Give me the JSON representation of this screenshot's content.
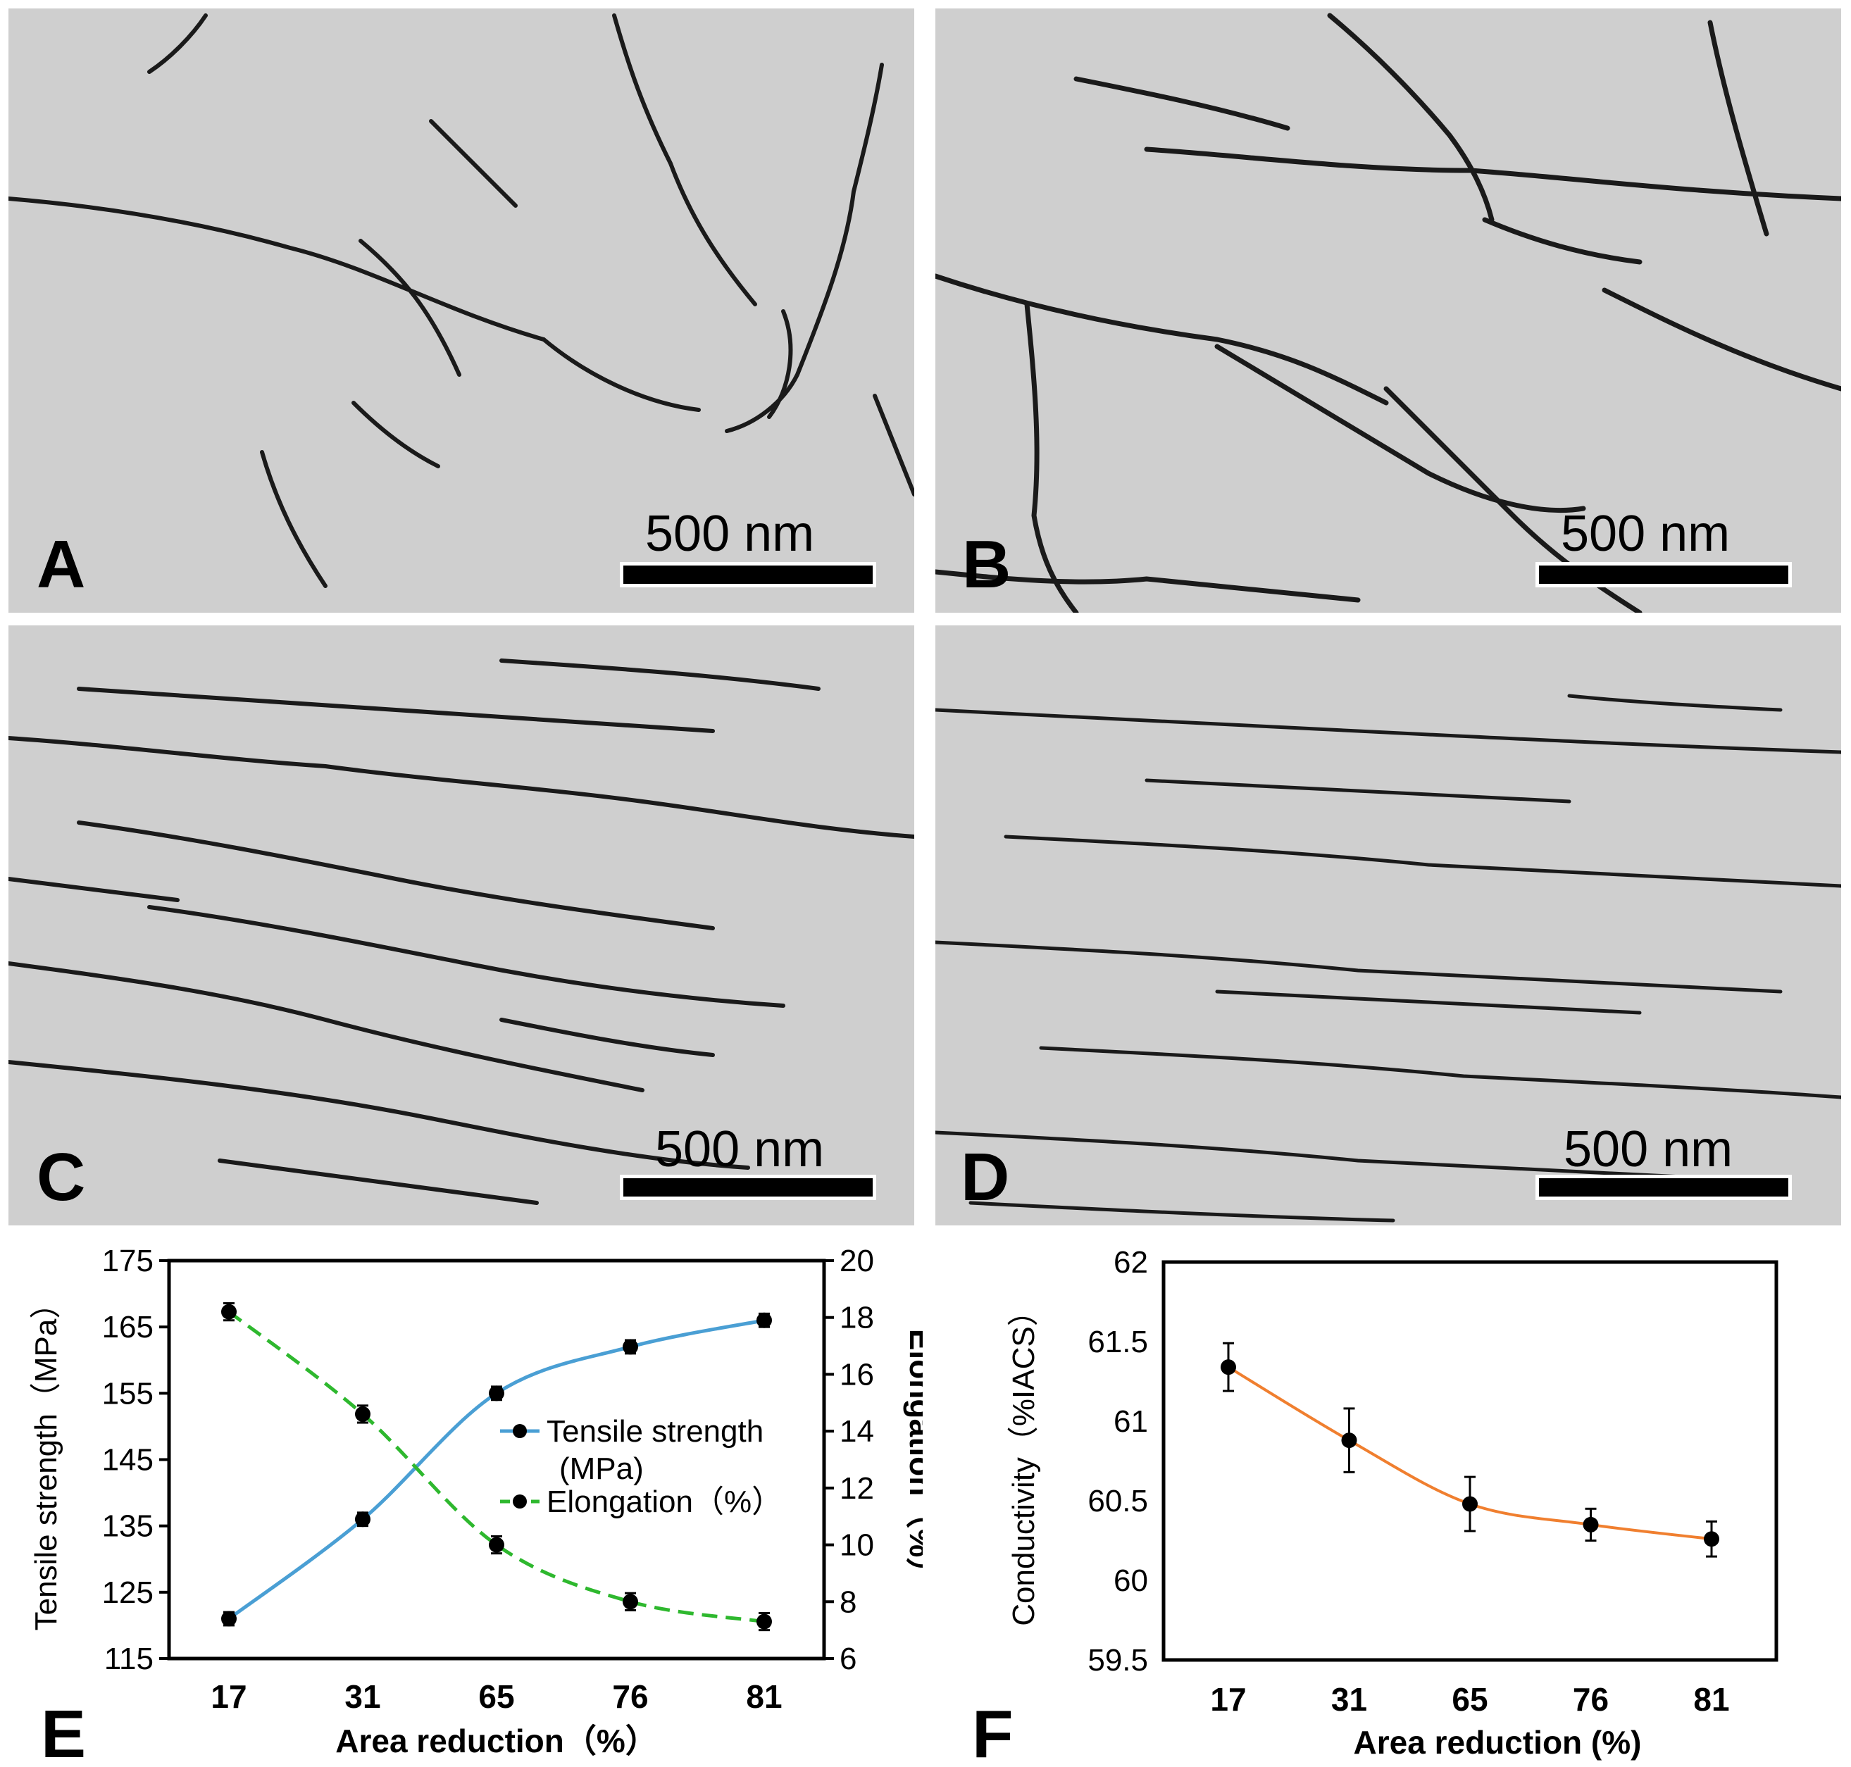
{
  "panels": {
    "A": {
      "label": "A",
      "scale": "500 nm"
    },
    "B": {
      "label": "B",
      "scale": "500 nm"
    },
    "C": {
      "label": "C",
      "scale": "500 nm"
    },
    "D": {
      "label": "D",
      "scale": "500 nm"
    },
    "E": {
      "label": "E"
    },
    "F": {
      "label": "F"
    }
  },
  "colors": {
    "tensile": "#4a9fd4",
    "elongation": "#2eb82e",
    "conductivity": "#f07f2f",
    "marker": "#000000"
  },
  "chart_data": [
    {
      "type": "line",
      "categories": [
        "17",
        "31",
        "65",
        "76",
        "81"
      ],
      "xlabel": "Area reduction（%）",
      "ylabel": "Tensile strength（MPa）",
      "ylabel2": "Elongation（%）",
      "ylim": [
        115,
        175
      ],
      "yticks": [
        "115",
        "125",
        "135",
        "145",
        "155",
        "165",
        "175"
      ],
      "y2lim": [
        6,
        20
      ],
      "y2ticks": [
        "6",
        "8",
        "10",
        "12",
        "14",
        "16",
        "18",
        "20"
      ],
      "legend": [
        {
          "name": "Tensile strength",
          "name2": "(MPa)"
        },
        {
          "name": "Elongation（%）"
        }
      ],
      "series": [
        {
          "name": "Tensile strength (MPa)",
          "axis": "left",
          "values": [
            121,
            136,
            155,
            162,
            166
          ],
          "errors": [
            1,
            1,
            1,
            1,
            1
          ]
        },
        {
          "name": "Elongation（%）",
          "axis": "right",
          "values": [
            18.2,
            14.6,
            10,
            8,
            7.3
          ],
          "errors": [
            0.3,
            0.3,
            0.3,
            0.3,
            0.3
          ]
        }
      ]
    },
    {
      "type": "line",
      "categories": [
        "17",
        "31",
        "65",
        "76",
        "81"
      ],
      "xlabel": "Area reduction (%)",
      "ylabel": "Conductivity（%IACS）",
      "ylim": [
        59.5,
        62
      ],
      "yticks": [
        "59.5",
        "60",
        "60.5",
        "61",
        "61.5",
        "62"
      ],
      "series": [
        {
          "name": "Conductivity",
          "values": [
            61.34,
            60.88,
            60.48,
            60.35,
            60.26
          ],
          "errors": [
            0.15,
            0.2,
            0.17,
            0.1,
            0.11
          ]
        }
      ]
    }
  ]
}
